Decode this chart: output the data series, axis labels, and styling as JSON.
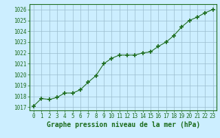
{
  "x": [
    0,
    1,
    2,
    3,
    4,
    5,
    6,
    7,
    8,
    9,
    10,
    11,
    12,
    13,
    14,
    15,
    16,
    17,
    18,
    19,
    20,
    21,
    22,
    23
  ],
  "y": [
    1017.1,
    1017.8,
    1017.7,
    1017.9,
    1018.3,
    1018.3,
    1018.6,
    1019.3,
    1019.9,
    1021.0,
    1021.5,
    1021.8,
    1021.8,
    1021.8,
    1022.0,
    1022.1,
    1022.6,
    1023.0,
    1023.6,
    1024.4,
    1025.0,
    1025.3,
    1025.7,
    1026.0
  ],
  "line_color": "#1a6b1a",
  "marker": "+",
  "marker_size": 4,
  "marker_linewidth": 1.2,
  "line_width": 0.8,
  "background_color": "#cceeff",
  "grid_color": "#99bbcc",
  "xlabel": "Graphe pression niveau de la mer (hPa)",
  "xlabel_fontsize": 7,
  "xlabel_color": "#1a6b1a",
  "xlabel_bold": true,
  "ylim": [
    1016.7,
    1026.5
  ],
  "yticks": [
    1017,
    1018,
    1019,
    1020,
    1021,
    1022,
    1023,
    1024,
    1025,
    1026
  ],
  "xticks": [
    0,
    1,
    2,
    3,
    4,
    5,
    6,
    7,
    8,
    9,
    10,
    11,
    12,
    13,
    14,
    15,
    16,
    17,
    18,
    19,
    20,
    21,
    22,
    23
  ],
  "tick_color": "#1a6b1a",
  "tick_fontsize": 5.5,
  "spine_color": "#1a6b1a"
}
